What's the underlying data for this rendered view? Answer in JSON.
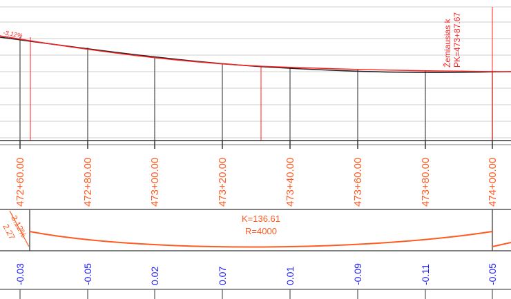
{
  "profile_view": {
    "start_grade_label": "-3.12%",
    "lowest_point_label": "Žemiausias k",
    "lowest_point_pk_label": "PK=473+87.67",
    "stations": [
      "472+60.00",
      "472+80.00",
      "473+00.00",
      "473+20.00",
      "473+40.00",
      "473+60.00",
      "473+80.00",
      "474+00.00"
    ]
  },
  "vertical_curve": {
    "k_label": "K=136.61",
    "r_label": "R=4000",
    "grade_in_label": "-3.12%",
    "grade_in_second": "2.27"
  },
  "elevation_differences": [
    "-0.03",
    "-0.05",
    "0.02",
    "0.07",
    "0.01",
    "-0.09",
    "-0.11",
    "-0.05"
  ],
  "colors": {
    "orange": "#ff5a1f",
    "red": "#ff2020",
    "blue": "#1a1aff",
    "grid": "#c8c8c8",
    "dark": "#333333"
  }
}
